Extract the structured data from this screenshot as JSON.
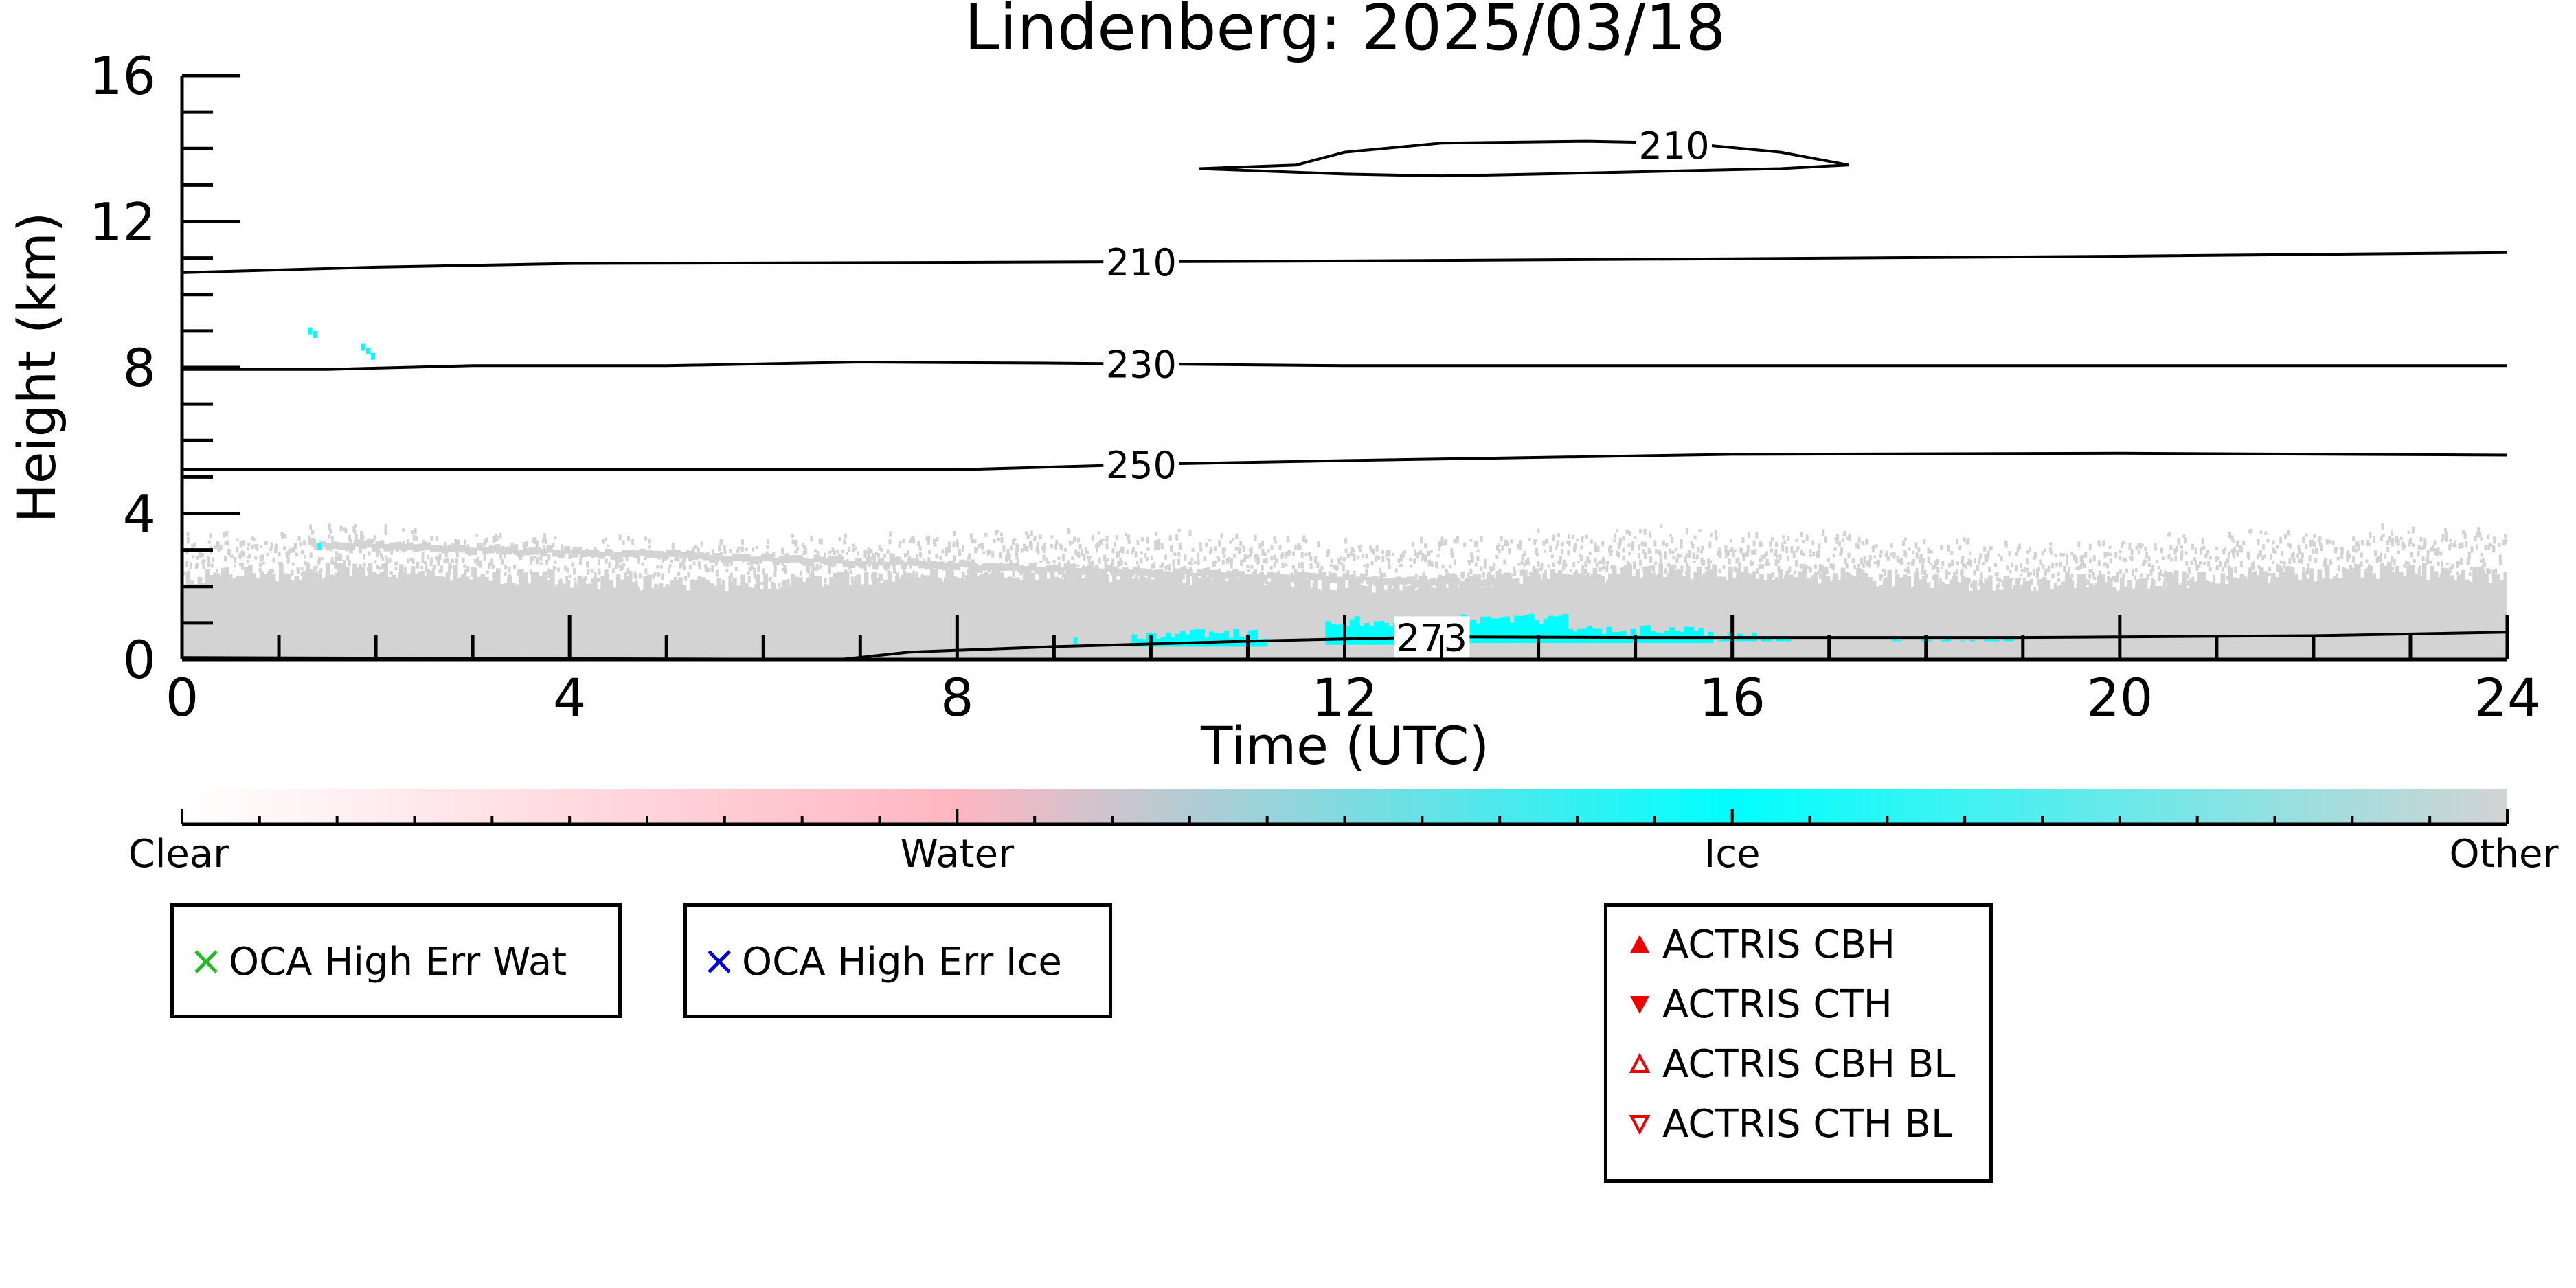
{
  "chart_data": {
    "type": "heatmap",
    "title": "Lindenberg: 2025/03/18",
    "xlabel": "Time (UTC)",
    "ylabel": "Height (km)",
    "xlim": [
      0,
      24
    ],
    "ylim": [
      0,
      16
    ],
    "xticks": [
      0,
      4,
      8,
      12,
      16,
      20,
      24
    ],
    "yticks": [
      0,
      4,
      8,
      12,
      16
    ],
    "grid": false,
    "colorbar": {
      "labels": [
        "Clear",
        "Water",
        "Ice",
        "Other"
      ],
      "colors": [
        "#ffffff",
        "#ffb6c1",
        "#00ffff",
        "#d3d3d3"
      ]
    },
    "contours": [
      {
        "label": "210",
        "label_x": 9.9,
        "points": [
          [
            0,
            10.6
          ],
          [
            2,
            10.75
          ],
          [
            4,
            10.85
          ],
          [
            8,
            10.88
          ],
          [
            12,
            10.92
          ],
          [
            16,
            10.98
          ],
          [
            20,
            11.05
          ],
          [
            24,
            11.15
          ]
        ]
      },
      {
        "label": "230",
        "label_x": 9.9,
        "points": [
          [
            0,
            7.95
          ],
          [
            1.5,
            7.95
          ],
          [
            3,
            8.05
          ],
          [
            5,
            8.05
          ],
          [
            7,
            8.15
          ],
          [
            9,
            8.12
          ],
          [
            12,
            8.05
          ],
          [
            16,
            8.05
          ],
          [
            20,
            8.05
          ],
          [
            24,
            8.05
          ]
        ]
      },
      {
        "label": "250",
        "label_x": 9.9,
        "points": [
          [
            0,
            5.2
          ],
          [
            4,
            5.2
          ],
          [
            8,
            5.2
          ],
          [
            10,
            5.35
          ],
          [
            12,
            5.45
          ],
          [
            16,
            5.62
          ],
          [
            20,
            5.65
          ],
          [
            24,
            5.6
          ]
        ]
      },
      {
        "label": "273",
        "label_x": 12.9,
        "points": [
          [
            0,
            0.05
          ],
          [
            6.8,
            0.0
          ],
          [
            7.5,
            0.2
          ],
          [
            9,
            0.35
          ],
          [
            11,
            0.5
          ],
          [
            13,
            0.62
          ],
          [
            15,
            0.6
          ],
          [
            19,
            0.6
          ],
          [
            22,
            0.65
          ],
          [
            24,
            0.75
          ]
        ]
      },
      {
        "label": "210",
        "label_x": 15.4,
        "closed": true,
        "points": [
          [
            10.5,
            13.45
          ],
          [
            11.5,
            13.55
          ],
          [
            12,
            13.9
          ],
          [
            13,
            14.15
          ],
          [
            14.5,
            14.2
          ],
          [
            15.5,
            14.15
          ],
          [
            16.5,
            13.9
          ],
          [
            17.2,
            13.55
          ],
          [
            16.5,
            13.45
          ],
          [
            14,
            13.3
          ],
          [
            13,
            13.25
          ],
          [
            12,
            13.3
          ],
          [
            11,
            13.4
          ]
        ]
      }
    ],
    "legend_oca": [
      {
        "label": "OCA High Err Wat",
        "marker": "x",
        "color": "#22bb22"
      },
      {
        "label": "OCA High Err Ice",
        "marker": "x",
        "color": "#0000dd"
      }
    ],
    "legend_actris": [
      {
        "label": "ACTRIS CBH",
        "marker": "triangle-up-filled",
        "color": "#ee0000"
      },
      {
        "label": "ACTRIS CTH",
        "marker": "triangle-down-filled",
        "color": "#ee0000"
      },
      {
        "label": "ACTRIS CBH BL",
        "marker": "triangle-up-open",
        "color": "#ee0000"
      },
      {
        "label": "ACTRIS CTH BL",
        "marker": "triangle-down-open",
        "color": "#ee0000"
      }
    ]
  }
}
